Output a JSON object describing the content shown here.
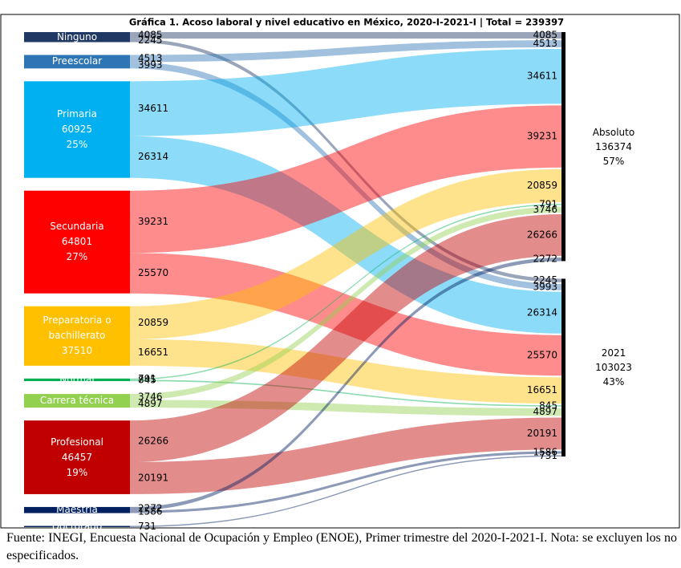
{
  "chart_data": {
    "type": "sankey",
    "title": "Gráfica 1. Acoso laboral y nivel educativo en México, 2020-I-2021-I | Total = 239397",
    "nodes": [
      {
        "name": "Ninguno",
        "color": "#1f3864"
      },
      {
        "name": "Preescolar",
        "color": "#2e75b6"
      },
      {
        "name": "Primaria",
        "value": 60925,
        "share": 25,
        "share_label": "25%",
        "color": "#00b0f0"
      },
      {
        "name": "Secundaria",
        "value": 64801,
        "share": 27,
        "share_label": "27%",
        "color": "#ff0000"
      },
      {
        "name": "Preparatoria o bachillerato",
        "value": 37510,
        "color": "#ffc000"
      },
      {
        "name": "Normal",
        "color": "#00b050"
      },
      {
        "name": "Carrera técnica",
        "color": "#92d050"
      },
      {
        "name": "Profesional",
        "value": 46457,
        "share": 19,
        "share_label": "19%",
        "color": "#c00000"
      },
      {
        "name": "Maestría",
        "color": "#002060"
      },
      {
        "name": "Doctorado",
        "color": "#002060"
      },
      {
        "name": "Absoluto",
        "value": 136374,
        "share": 57,
        "share_label": "57%",
        "color": "#000000"
      },
      {
        "name": "2021",
        "value": 103023,
        "share": 43,
        "share_label": "43%",
        "color": "#000000"
      }
    ],
    "links": [
      {
        "source": 0,
        "target": 10,
        "value": 4085
      },
      {
        "source": 0,
        "target": 11,
        "value": 2245
      },
      {
        "source": 1,
        "target": 10,
        "value": 4513
      },
      {
        "source": 1,
        "target": 11,
        "value": 3993
      },
      {
        "source": 2,
        "target": 10,
        "value": 34611
      },
      {
        "source": 2,
        "target": 11,
        "value": 26314
      },
      {
        "source": 3,
        "target": 10,
        "value": 39231
      },
      {
        "source": 3,
        "target": 11,
        "value": 25570
      },
      {
        "source": 4,
        "target": 10,
        "value": 20859
      },
      {
        "source": 4,
        "target": 11,
        "value": 16651
      },
      {
        "source": 5,
        "target": 10,
        "value": 791
      },
      {
        "source": 5,
        "target": 11,
        "value": 845
      },
      {
        "source": 6,
        "target": 10,
        "value": 3746
      },
      {
        "source": 6,
        "target": 11,
        "value": 4897
      },
      {
        "source": 7,
        "target": 10,
        "value": 26266
      },
      {
        "source": 7,
        "target": 11,
        "value": 20191
      },
      {
        "source": 8,
        "target": 10,
        "value": 2272
      },
      {
        "source": 8,
        "target": 11,
        "value": 1586
      },
      {
        "source": 9,
        "target": 11,
        "value": 731
      }
    ],
    "note": "Fuente: INEGI, Encuesta Nacional de Ocupación y Empleo (ENOE), Primer trimestre del 2020-I-2021-I. Nota: se excluyen los no especificados."
  }
}
